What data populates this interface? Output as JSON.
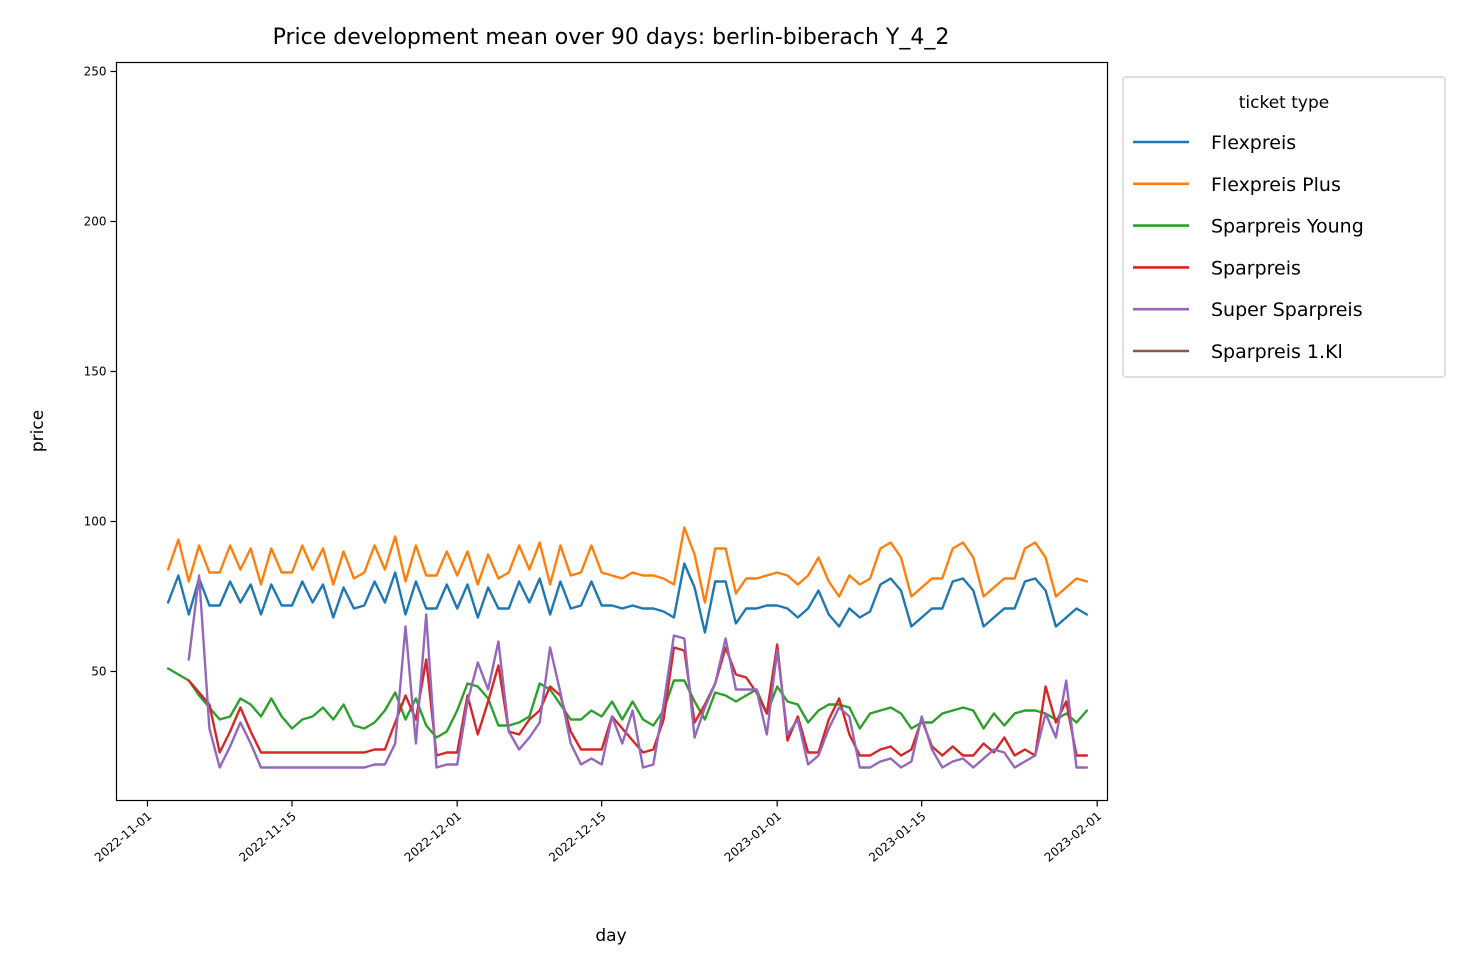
{
  "chart_data": {
    "type": "line",
    "title": "Price development mean over 90 days: berlin-biberach Y_4_2",
    "xlabel": "day",
    "ylabel": "price",
    "x_start": "2022-11-03",
    "xlim": [
      "2022-10-29",
      "2023-02-02"
    ],
    "ylim": [
      7,
      253
    ],
    "x_ticks": [
      "2022-11-01",
      "2022-11-15",
      "2022-12-01",
      "2022-12-15",
      "2023-01-01",
      "2023-01-15",
      "2023-02-01"
    ],
    "y_ticks": [
      50,
      100,
      150,
      200,
      250
    ],
    "grid": false,
    "legend": {
      "title": "ticket type",
      "placement": "outside right, top"
    },
    "series": [
      {
        "name": "Flexpreis",
        "color": "#1f77b4",
        "values": [
          73,
          82,
          69,
          81,
          72,
          72,
          80,
          73,
          79,
          69,
          79,
          72,
          72,
          80,
          73,
          79,
          68,
          78,
          71,
          72,
          80,
          73,
          83,
          69,
          80,
          71,
          71,
          79,
          71,
          79,
          68,
          78,
          71,
          71,
          80,
          73,
          81,
          69,
          80,
          71,
          72,
          80,
          72,
          72,
          71,
          72,
          71,
          71,
          70,
          68,
          86,
          78,
          63,
          80,
          80,
          66,
          71,
          71,
          72,
          72,
          71,
          68,
          71,
          77,
          69,
          65,
          71,
          68,
          70,
          79,
          81,
          77,
          65,
          68,
          71,
          71,
          80,
          81,
          77,
          65,
          68,
          71,
          71,
          80,
          81,
          77,
          65,
          68,
          71,
          69
        ]
      },
      {
        "name": "Flexpreis Plus",
        "color": "#ff7f0e",
        "values": [
          84,
          94,
          80,
          92,
          83,
          83,
          92,
          84,
          91,
          79,
          91,
          83,
          83,
          92,
          84,
          91,
          79,
          90,
          81,
          83,
          92,
          84,
          95,
          80,
          92,
          82,
          82,
          90,
          82,
          90,
          79,
          89,
          81,
          83,
          92,
          84,
          93,
          79,
          92,
          82,
          83,
          92,
          83,
          82,
          81,
          83,
          82,
          82,
          81,
          79,
          98,
          89,
          73,
          91,
          91,
          76,
          81,
          81,
          82,
          83,
          82,
          79,
          82,
          88,
          80,
          75,
          82,
          79,
          81,
          91,
          93,
          88,
          75,
          78,
          81,
          81,
          91,
          93,
          88,
          75,
          78,
          81,
          81,
          91,
          93,
          88,
          75,
          78,
          81,
          80
        ]
      },
      {
        "name": "Sparpreis Young",
        "color": "#2ca02c",
        "values": [
          51,
          49,
          47,
          42,
          38,
          34,
          35,
          41,
          39,
          35,
          41,
          35,
          31,
          34,
          35,
          38,
          34,
          39,
          32,
          31,
          33,
          37,
          43,
          34,
          41,
          32,
          28,
          30,
          37,
          46,
          45,
          41,
          32,
          32,
          33,
          35,
          46,
          44,
          39,
          34,
          34,
          37,
          35,
          40,
          34,
          40,
          34,
          32,
          37,
          47,
          47,
          40,
          34,
          43,
          42,
          40,
          42,
          44,
          36,
          45,
          40,
          39,
          33,
          37,
          39,
          39,
          38,
          31,
          36,
          37,
          38,
          36,
          31,
          33,
          33,
          36,
          37,
          38,
          37,
          31,
          36,
          32,
          36,
          37,
          37,
          36,
          34,
          36,
          33,
          37
        ]
      },
      {
        "name": "Sparpreis",
        "color": "#d62728",
        "values": [
          null,
          null,
          47,
          43,
          39,
          23,
          30,
          38,
          30,
          23,
          23,
          23,
          23,
          23,
          23,
          23,
          23,
          23,
          23,
          23,
          24,
          24,
          33,
          42,
          34,
          54,
          22,
          23,
          23,
          42,
          29,
          40,
          52,
          30,
          29,
          34,
          37,
          45,
          42,
          30,
          24,
          24,
          24,
          35,
          31,
          27,
          23,
          24,
          34,
          58,
          57,
          33,
          39,
          46,
          58,
          49,
          48,
          43,
          36,
          59,
          27,
          35,
          23,
          23,
          34,
          41,
          29,
          22,
          22,
          24,
          25,
          22,
          24,
          34,
          25,
          22,
          25,
          22,
          22,
          26,
          23,
          28,
          22,
          24,
          22,
          45,
          33,
          40,
          22,
          22
        ]
      },
      {
        "name": "Super Sparpreis",
        "color": "#9467bd",
        "values": [
          null,
          null,
          54,
          82,
          31,
          18,
          25,
          33,
          26,
          18,
          18,
          18,
          18,
          18,
          18,
          18,
          18,
          18,
          18,
          18,
          19,
          19,
          26,
          65,
          26,
          69,
          18,
          19,
          19,
          40,
          53,
          44,
          60,
          30,
          24,
          28,
          33,
          58,
          43,
          26,
          19,
          21,
          19,
          35,
          26,
          37,
          18,
          19,
          39,
          62,
          61,
          28,
          38,
          46,
          61,
          44,
          44,
          44,
          29,
          57,
          29,
          34,
          19,
          22,
          31,
          38,
          35,
          18,
          18,
          20,
          21,
          18,
          20,
          35,
          24,
          18,
          20,
          21,
          18,
          21,
          24,
          23,
          18,
          20,
          22,
          36,
          28,
          47,
          18,
          18
        ]
      },
      {
        "name": "Sparpreis 1.Kl",
        "color": "#8c564b",
        "values": []
      }
    ]
  }
}
